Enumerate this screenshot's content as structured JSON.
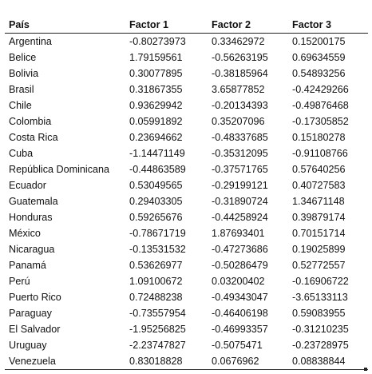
{
  "table": {
    "headers": [
      "País",
      "Factor 1",
      "Factor 2",
      "Factor 3"
    ],
    "rows": [
      [
        "Argentina",
        "-0.80273973",
        "0.33462972",
        "0.15200175"
      ],
      [
        "Belice",
        "1.79159561",
        "-0.56263195",
        "0.69634559"
      ],
      [
        "Bolivia",
        "0.30077895",
        "-0.38185964",
        "0.54893256"
      ],
      [
        "Brasil",
        "0.31867355",
        "3.65877852",
        "-0.42429266"
      ],
      [
        "Chile",
        "0.93629942",
        "-0.20134393",
        "-0.49876468"
      ],
      [
        "Colombia",
        "0.05991892",
        "0.35207096",
        "-0.17305852"
      ],
      [
        "Costa Rica",
        "0.23694662",
        "-0.48337685",
        "0.15180278"
      ],
      [
        "Cuba",
        "-1.14471149",
        "-0.35312095",
        "-0.91108766"
      ],
      [
        "República Dominicana",
        "-0.44863589",
        "-0.37571765",
        "0.57640256"
      ],
      [
        "Ecuador",
        "0.53049565",
        "-0.29199121",
        "0.40727583"
      ],
      [
        "Guatemala",
        "0.29403305",
        "-0.31890724",
        "1.34671148"
      ],
      [
        "Honduras",
        "0.59265676",
        "-0.44258924",
        "0.39879174"
      ],
      [
        "México",
        "-0.78671719",
        "1.87693401",
        "0.70151714"
      ],
      [
        "Nicaragua",
        "-0.13531532",
        "-0.47273686",
        "0.19025899"
      ],
      [
        "Panamá",
        "0.53626977",
        "-0.50286479",
        "0.52772557"
      ],
      [
        "Perú",
        "1.09100672",
        "0.03200402",
        "-0.16906722"
      ],
      [
        "Puerto Rico",
        "0.72488238",
        "-0.49343047",
        "-3.65133113"
      ],
      [
        "Paraguay",
        "-0.73557954",
        "-0.46406198",
        "0.59083955"
      ],
      [
        "El Salvador",
        "-1.95256825",
        "-0.46993357",
        "-0.31210235"
      ],
      [
        "Uruguay",
        "-2.23747827",
        "-0.5075471",
        "-0.23728975"
      ],
      [
        "Venezuela",
        "0.83018828",
        "0.0676962",
        "0.08838844"
      ]
    ]
  }
}
